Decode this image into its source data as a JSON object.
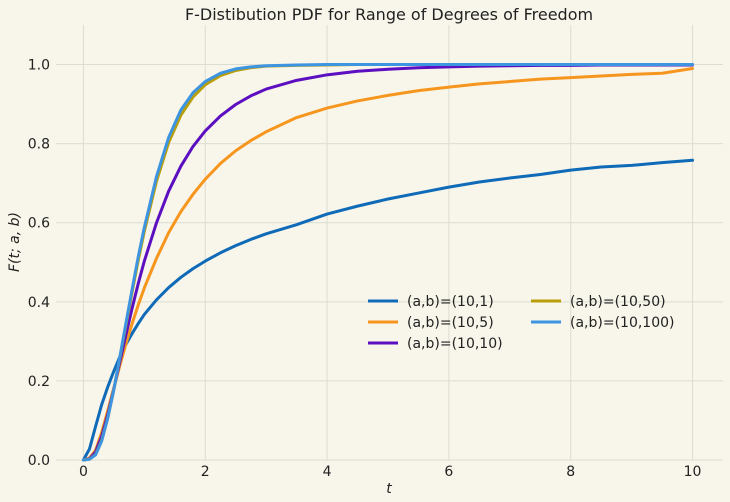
{
  "chart_data": {
    "type": "line",
    "title": "F-Distibution PDF for Range of Degrees of Freedom",
    "xlabel": "t",
    "ylabel": "F(t; a, b)",
    "xlim": [
      -0.45,
      10.5
    ],
    "ylim": [
      0.0,
      1.1
    ],
    "xticks": [
      0,
      2,
      4,
      6,
      8,
      10
    ],
    "yticks": [
      0.0,
      0.2,
      0.4,
      0.6,
      0.8,
      1.0
    ],
    "xtick_labels": [
      "0",
      "2",
      "4",
      "6",
      "8",
      "10"
    ],
    "ytick_labels": [
      "0.0",
      "0.2",
      "0.4",
      "0.6",
      "0.8",
      "1.0"
    ],
    "grid": true,
    "legend_position": "lower-right",
    "legend_columns": 2,
    "colors": {
      "background": "#f8f6ea",
      "grid": "#dcdcd2",
      "text": "#222222"
    },
    "x": [
      0.0,
      0.1,
      0.2,
      0.3,
      0.4,
      0.5,
      0.6,
      0.7,
      0.8,
      0.9,
      1.0,
      1.2,
      1.4,
      1.6,
      1.8,
      2.0,
      2.25,
      2.5,
      2.75,
      3.0,
      3.5,
      4.0,
      4.5,
      5.0,
      5.5,
      6.0,
      6.5,
      7.0,
      7.5,
      8.0,
      8.5,
      9.0,
      9.5,
      10.0
    ],
    "series": [
      {
        "name": "(a,b)=(10,1)",
        "color": "#0f6ab8",
        "values": [
          0.0,
          0.028,
          0.085,
          0.14,
          0.185,
          0.225,
          0.262,
          0.293,
          0.32,
          0.345,
          0.368,
          0.405,
          0.436,
          0.462,
          0.484,
          0.503,
          0.524,
          0.542,
          0.558,
          0.572,
          0.595,
          0.622,
          0.642,
          0.66,
          0.675,
          0.69,
          0.703,
          0.713,
          0.722,
          0.733,
          0.741,
          0.745,
          0.752,
          0.758
        ]
      },
      {
        "name": "(a,b)=(10,5)",
        "color": "#f6961f",
        "values": [
          0.0,
          0.005,
          0.025,
          0.07,
          0.125,
          0.183,
          0.24,
          0.295,
          0.345,
          0.392,
          0.435,
          0.51,
          0.575,
          0.628,
          0.672,
          0.71,
          0.75,
          0.782,
          0.808,
          0.83,
          0.866,
          0.89,
          0.908,
          0.922,
          0.934,
          0.943,
          0.951,
          0.957,
          0.963,
          0.967,
          0.971,
          0.975,
          0.978,
          0.99
        ]
      },
      {
        "name": "(a,b)=(10,10)",
        "color": "#5b0fc0",
        "values": [
          0.0,
          0.003,
          0.02,
          0.06,
          0.115,
          0.18,
          0.25,
          0.318,
          0.384,
          0.446,
          0.503,
          0.6,
          0.68,
          0.743,
          0.793,
          0.832,
          0.87,
          0.899,
          0.921,
          0.938,
          0.96,
          0.974,
          0.983,
          0.988,
          0.992,
          0.994,
          0.996,
          0.997,
          0.998,
          0.998,
          0.999,
          0.999,
          0.999,
          0.999
        ]
      },
      {
        "name": "(a,b)=(10,50)",
        "color": "#b89f0a",
        "values": [
          0.0,
          0.002,
          0.014,
          0.05,
          0.107,
          0.178,
          0.26,
          0.343,
          0.425,
          0.505,
          0.578,
          0.705,
          0.803,
          0.872,
          0.918,
          0.949,
          0.972,
          0.985,
          0.992,
          0.996,
          0.998,
          0.999,
          1.0,
          1.0,
          1.0,
          1.0,
          1.0,
          1.0,
          1.0,
          1.0,
          1.0,
          1.0,
          1.0,
          1.0
        ]
      },
      {
        "name": "(a,b)=(10,100)",
        "color": "#3d94e0",
        "values": [
          0.0,
          0.002,
          0.013,
          0.048,
          0.106,
          0.178,
          0.262,
          0.348,
          0.432,
          0.514,
          0.588,
          0.717,
          0.816,
          0.885,
          0.929,
          0.957,
          0.978,
          0.989,
          0.994,
          0.997,
          0.999,
          1.0,
          1.0,
          1.0,
          1.0,
          1.0,
          1.0,
          1.0,
          1.0,
          1.0,
          1.0,
          1.0,
          1.0,
          1.0
        ]
      }
    ]
  }
}
